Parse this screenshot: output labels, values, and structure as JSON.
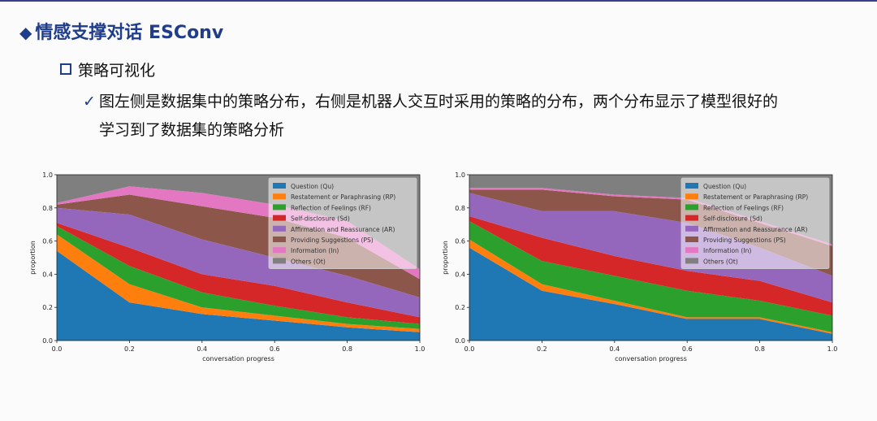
{
  "slide": {
    "title_mark": "◆",
    "title": "情感支撑对话 ESConv",
    "bullet1": "策略可视化",
    "check_mark": "✓",
    "bullet2": "图左侧是数据集中的策略分布，右侧是机器人交互时采用的策略的分布，两个分布显示了模型很好的学习到了数据集的策略分析"
  },
  "chart_data": [
    {
      "type": "area",
      "stacked": true,
      "xlabel": "conversation progress",
      "ylabel": "proportion",
      "xlim": [
        0,
        1
      ],
      "ylim": [
        0,
        1
      ],
      "x": [
        0.0,
        0.2,
        0.4,
        0.6,
        0.8,
        1.0
      ],
      "xticks": [
        "0.0",
        "0.2",
        "0.4",
        "0.6",
        "0.8",
        "1.0"
      ],
      "yticks": [
        "0.0",
        "0.2",
        "0.4",
        "0.6",
        "0.8",
        "1.0"
      ],
      "legend_position": "top-right",
      "series": [
        {
          "name": "Question (Qu)",
          "color": "#1f77b4",
          "values": [
            0.54,
            0.23,
            0.16,
            0.12,
            0.08,
            0.05
          ]
        },
        {
          "name": "Restatement or Paraphrasing (RP)",
          "color": "#ff7f0e",
          "values": [
            0.1,
            0.11,
            0.04,
            0.03,
            0.02,
            0.02
          ]
        },
        {
          "name": "Reflection of Feelings (RF)",
          "color": "#2ca02c",
          "values": [
            0.05,
            0.11,
            0.09,
            0.06,
            0.04,
            0.03
          ]
        },
        {
          "name": "Self-disclosure (Sd)",
          "color": "#d62728",
          "values": [
            0.02,
            0.11,
            0.11,
            0.12,
            0.09,
            0.04
          ]
        },
        {
          "name": "Affirmation and Reassurance (AR)",
          "color": "#9467bd",
          "values": [
            0.09,
            0.2,
            0.21,
            0.17,
            0.16,
            0.12
          ]
        },
        {
          "name": "Providing Suggestions (PS)",
          "color": "#8c564b",
          "values": [
            0.02,
            0.12,
            0.2,
            0.24,
            0.23,
            0.11
          ]
        },
        {
          "name": "Information (In)",
          "color": "#e377c2",
          "values": [
            0.01,
            0.05,
            0.08,
            0.08,
            0.1,
            0.06
          ]
        },
        {
          "name": "Others (Ot)",
          "color": "#7f7f7f",
          "values": [
            0.17,
            0.07,
            0.11,
            0.18,
            0.28,
            0.57
          ]
        }
      ]
    },
    {
      "type": "area",
      "stacked": true,
      "xlabel": "conversation progress",
      "ylabel": "proportion",
      "xlim": [
        0,
        1
      ],
      "ylim": [
        0,
        1
      ],
      "x": [
        0.0,
        0.2,
        0.4,
        0.6,
        0.8,
        1.0
      ],
      "xticks": [
        "0.0",
        "0.2",
        "0.4",
        "0.6",
        "0.8",
        "1.0"
      ],
      "yticks": [
        "0.0",
        "0.2",
        "0.4",
        "0.6",
        "0.8",
        "1.0"
      ],
      "legend_position": "top-right",
      "series": [
        {
          "name": "Question (Qu)",
          "color": "#1f77b4",
          "values": [
            0.56,
            0.3,
            0.22,
            0.13,
            0.13,
            0.04
          ]
        },
        {
          "name": "Restatement or Paraphrasing (RP)",
          "color": "#ff7f0e",
          "values": [
            0.05,
            0.04,
            0.02,
            0.01,
            0.01,
            0.01
          ]
        },
        {
          "name": "Reflection of Feelings (RF)",
          "color": "#2ca02c",
          "values": [
            0.11,
            0.14,
            0.15,
            0.16,
            0.1,
            0.1
          ]
        },
        {
          "name": "Self-disclosure (Sd)",
          "color": "#d62728",
          "values": [
            0.03,
            0.14,
            0.12,
            0.12,
            0.12,
            0.08
          ]
        },
        {
          "name": "Affirmation and Reassurance (AR)",
          "color": "#9467bd",
          "values": [
            0.14,
            0.16,
            0.27,
            0.29,
            0.2,
            0.16
          ]
        },
        {
          "name": "Providing Suggestions (PS)",
          "color": "#8c564b",
          "values": [
            0.02,
            0.13,
            0.09,
            0.14,
            0.15,
            0.18
          ]
        },
        {
          "name": "Information (In)",
          "color": "#e377c2",
          "values": [
            0.01,
            0.01,
            0.01,
            0.01,
            0.01,
            0.01
          ]
        },
        {
          "name": "Others (Ot)",
          "color": "#7f7f7f",
          "values": [
            0.08,
            0.08,
            0.12,
            0.14,
            0.28,
            0.42
          ]
        }
      ]
    }
  ]
}
